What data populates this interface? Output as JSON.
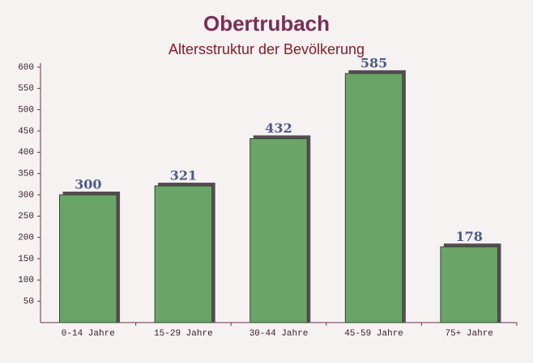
{
  "chart_data": {
    "type": "bar",
    "title": "Obertrubach",
    "subtitle": "Altersstruktur der Bevölkerung",
    "categories": [
      "0-14 Jahre",
      "15-29 Jahre",
      "30-44 Jahre",
      "45-59 Jahre",
      "75+ Jahre"
    ],
    "values": [
      300,
      321,
      432,
      585,
      178
    ],
    "color": "#6aa466",
    "ylim": [
      0,
      600
    ],
    "yticks": [
      50,
      100,
      150,
      200,
      250,
      300,
      350,
      400,
      450,
      500,
      550,
      600
    ],
    "grid": false
  }
}
